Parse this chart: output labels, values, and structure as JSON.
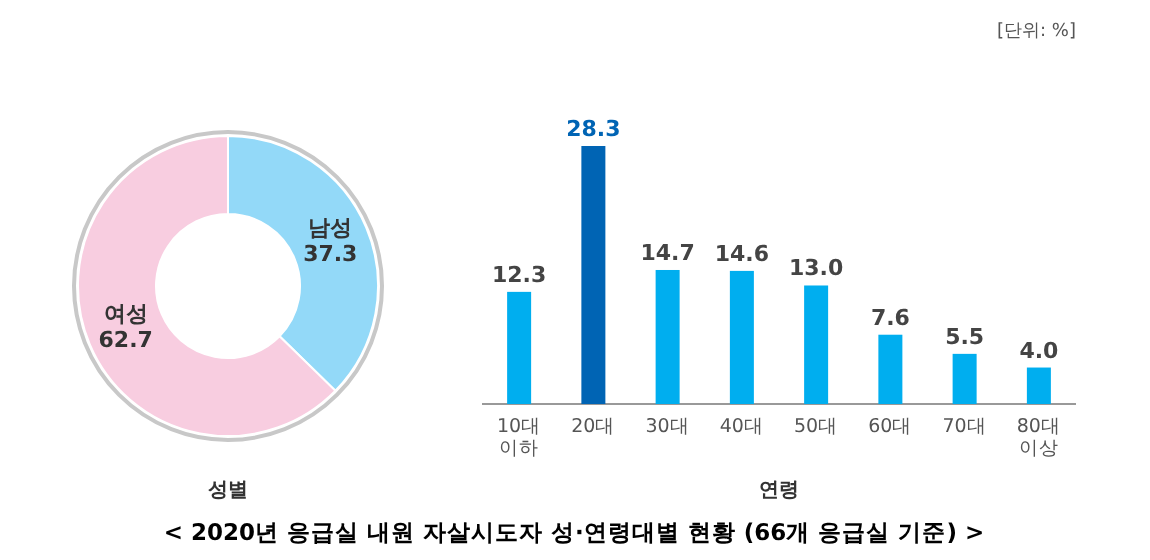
{
  "chart_data": [
    {
      "type": "donut",
      "title": "< 2020년 응급실 내원 자살시도자 성·연령대별 현황 (66개 응급실 기준) >",
      "xlabel": "성별",
      "categories": [
        "남성",
        "여성"
      ],
      "values": [
        37.3,
        62.7
      ],
      "colors": [
        "#93d9f8",
        "#f8cde0"
      ],
      "data_labels": true
    },
    {
      "type": "bar",
      "xlabel": "연령",
      "annotations": [
        "[단위: %]"
      ],
      "categories": [
        "10대\n이하",
        "20대",
        "30대",
        "40대",
        "50대",
        "60대",
        "70대",
        "80대\n이상"
      ],
      "values": [
        12.3,
        28.3,
        14.7,
        14.6,
        13.0,
        7.6,
        5.5,
        4.0
      ],
      "colors": [
        "#00aeef",
        "#0064b4",
        "#00aeef",
        "#00aeef",
        "#00aeef",
        "#00aeef",
        "#00aeef",
        "#00aeef"
      ],
      "value_labels": [
        "12.3",
        "28.3",
        "14.7",
        "14.6",
        "13.0",
        "7.6",
        "5.5",
        "4.0"
      ]
    }
  ]
}
